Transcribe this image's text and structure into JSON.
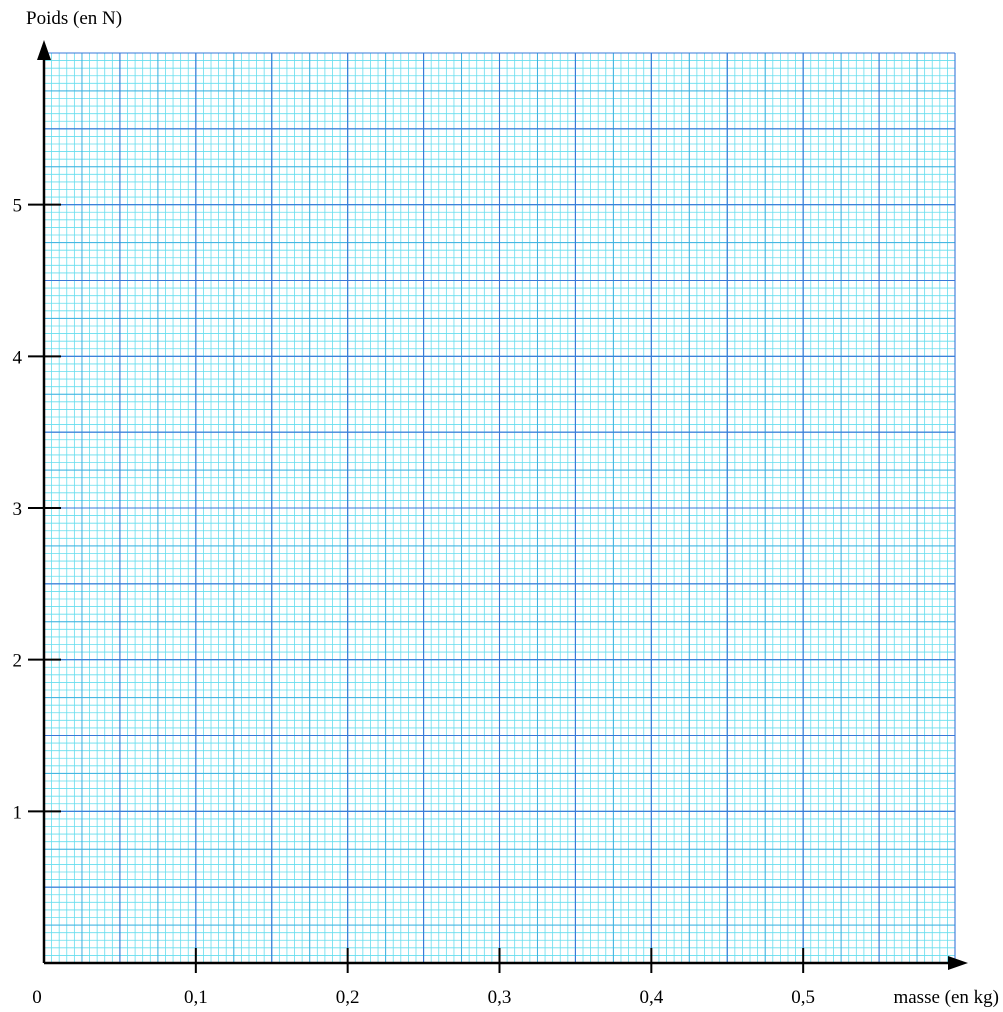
{
  "chart_data": {
    "type": "scatter",
    "title": "",
    "xlabel": "masse (en kg)",
    "ylabel": "Poids (en N)",
    "origin_label": "0",
    "xlim": [
      0,
      0.6
    ],
    "ylim": [
      0,
      6
    ],
    "x_ticks": [
      0.1,
      0.2,
      0.3,
      0.4,
      0.5
    ],
    "x_tick_labels": [
      "0,1",
      "0,2",
      "0,3",
      "0,4",
      "0,5"
    ],
    "y_ticks": [
      1,
      2,
      3,
      4,
      5
    ],
    "y_tick_labels": [
      "1",
      "2",
      "3",
      "4",
      "5"
    ],
    "grid": true,
    "series": [],
    "colors": {
      "paper": "#ffffff",
      "grid_fine": "#66ddee",
      "grid_medium": "#3fb0e0",
      "grid_major": "#3a78d8",
      "axis": "#000000"
    }
  }
}
